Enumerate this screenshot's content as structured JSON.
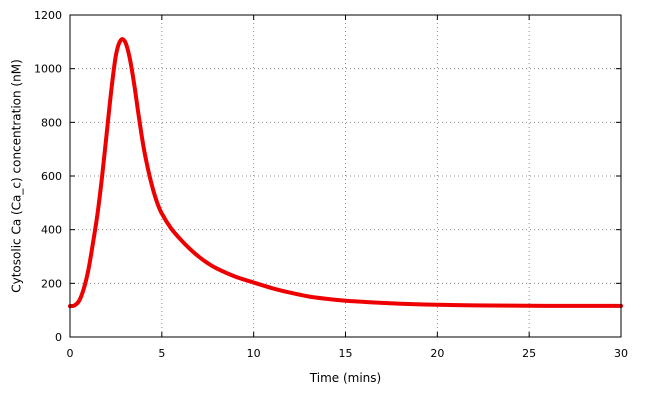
{
  "chart_data": {
    "type": "line",
    "title": "",
    "xlabel": "Time (mins)",
    "ylabel": "Cytosolic Ca (Ca_c) concentration (nM)",
    "xlim": [
      0,
      30
    ],
    "ylim": [
      0,
      1200
    ],
    "xticks": [
      0,
      5,
      10,
      15,
      20,
      25,
      30
    ],
    "yticks": [
      0,
      200,
      400,
      600,
      800,
      1000,
      1200
    ],
    "xtick_labels": [
      "0",
      "5",
      "10",
      "15",
      "20",
      "25",
      "30"
    ],
    "ytick_labels": [
      "0",
      "200",
      "400",
      "600",
      "800",
      "1000",
      "1200"
    ],
    "grid": true,
    "legend": "none",
    "series": [
      {
        "color": "#ee0000",
        "x": [
          0,
          0.25,
          0.5,
          0.75,
          1.0,
          1.25,
          1.5,
          1.75,
          2.0,
          2.25,
          2.5,
          2.75,
          3.0,
          3.25,
          3.5,
          3.75,
          4.0,
          4.25,
          4.5,
          4.75,
          5.0,
          5.5,
          6.0,
          6.5,
          7.0,
          7.5,
          8.0,
          9.0,
          10.0,
          11.0,
          12.0,
          13.0,
          14.0,
          15.0,
          16.0,
          17.0,
          18.0,
          20.0,
          22.0,
          24.0,
          26.0,
          28.0,
          30.0
        ],
        "y": [
          115,
          118,
          135,
          180,
          250,
          350,
          460,
          600,
          760,
          920,
          1050,
          1105,
          1100,
          1040,
          940,
          820,
          710,
          625,
          555,
          500,
          460,
          405,
          365,
          330,
          300,
          275,
          255,
          225,
          203,
          182,
          165,
          151,
          142,
          135,
          131,
          127,
          124,
          120,
          118,
          117,
          116,
          116,
          116
        ]
      }
    ]
  }
}
